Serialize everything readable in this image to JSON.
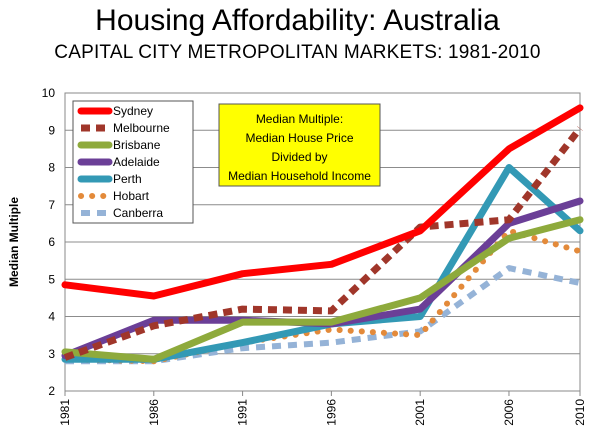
{
  "chart_data": {
    "type": "line",
    "title": "Housing Affordability: Australia",
    "subtitle": "CAPITAL CITY METROPOLITAN MARKETS: 1981-2010",
    "xlabel": "",
    "ylabel": "Median Multiple",
    "x": [
      1981,
      1986,
      1991,
      1996,
      2001,
      2006,
      2010
    ],
    "x_tick_labels": [
      "1981",
      "1986",
      "1991",
      "1996",
      "2001",
      "2006",
      "2010"
    ],
    "ylim": [
      2,
      10
    ],
    "y_ticks": [
      2,
      3,
      4,
      5,
      6,
      7,
      8,
      9,
      10
    ],
    "grid": true,
    "legend_position": "top-left",
    "annotation": [
      "Median Multiple:",
      "Median House Price",
      "Divided by",
      "Median Household Income"
    ],
    "series": [
      {
        "name": "Sydney",
        "color": "#ff0000",
        "style": "solid",
        "values": [
          4.85,
          4.55,
          5.15,
          5.4,
          6.3,
          8.5,
          9.6
        ]
      },
      {
        "name": "Melbourne",
        "color": "#a0362a",
        "style": "dashed",
        "values": [
          2.9,
          3.75,
          4.2,
          4.15,
          6.4,
          6.6,
          9.05
        ]
      },
      {
        "name": "Brisbane",
        "color": "#8eaa3c",
        "style": "solid",
        "values": [
          3.05,
          2.85,
          3.85,
          3.85,
          4.5,
          6.1,
          6.6
        ]
      },
      {
        "name": "Adelaide",
        "color": "#6b3f97",
        "style": "solid",
        "values": [
          2.95,
          3.9,
          3.9,
          3.8,
          4.2,
          6.5,
          7.1
        ]
      },
      {
        "name": "Perth",
        "color": "#3399b5",
        "style": "solid",
        "values": [
          2.85,
          2.85,
          3.3,
          3.8,
          4.0,
          8.0,
          6.3
        ]
      },
      {
        "name": "Hobart",
        "color": "#e38a3a",
        "style": "dotted",
        "values": [
          2.85,
          2.8,
          3.3,
          3.65,
          3.5,
          6.3,
          5.75
        ]
      },
      {
        "name": "Canberra",
        "color": "#95b3d7",
        "style": "dashed-light",
        "values": [
          2.8,
          2.8,
          3.15,
          3.3,
          3.6,
          5.3,
          4.9
        ]
      }
    ]
  }
}
